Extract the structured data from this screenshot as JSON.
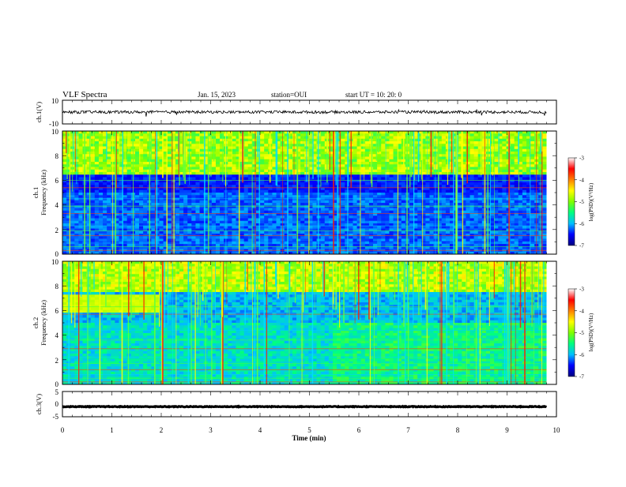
{
  "chart_data": {
    "type": "heatmap",
    "title": "VLF Spectra",
    "date": "Jan. 15, 2023",
    "station": "station=OUI",
    "start": "start  UT =   10: 20: 0",
    "xlabel": "Time (min)",
    "xlim": [
      0,
      10
    ],
    "xticks": [
      "0",
      "1",
      "2",
      "3",
      "4",
      "5",
      "6",
      "7",
      "8",
      "9",
      "10"
    ],
    "panels": [
      {
        "name": "ch1-waveform",
        "ylabel": "ch.1(V)",
        "ylim": [
          -10,
          10
        ],
        "yticks": [
          "10",
          "-10"
        ],
        "trace_level": 0,
        "trace_amplitude": 1.2
      },
      {
        "name": "ch1-spectrogram",
        "ylabel_line1": "ch.1",
        "ylabel_line2": "Frequency (kHz)",
        "ylim": [
          0,
          10
        ],
        "yticks": [
          "10",
          "8",
          "6",
          "4",
          "2",
          "0"
        ]
      },
      {
        "name": "ch2-spectrogram",
        "ylabel_line1": "ch.2",
        "ylabel_line2": "Frequency (kHz)",
        "ylim": [
          0,
          10
        ],
        "yticks": [
          "10",
          "8",
          "6",
          "4",
          "2",
          "0"
        ]
      },
      {
        "name": "ch3-waveform",
        "ylabel": "ch.3(V)",
        "ylim": [
          -5,
          5
        ],
        "yticks": [
          "5",
          "0",
          "-5"
        ],
        "trace_level": -1.0,
        "trace_amplitude": 0.15
      }
    ],
    "colorbar": {
      "label": "log(PSD)(V²/Hz)",
      "range": [
        -7,
        -3
      ],
      "ticks": [
        "-3",
        "-4",
        "-5",
        "-6",
        "-7"
      ],
      "colors": [
        "#000080",
        "#0000ff",
        "#00bfff",
        "#00ff80",
        "#80ff00",
        "#ffff00",
        "#ff8000",
        "#ff0000",
        "#ffffff"
      ]
    }
  }
}
